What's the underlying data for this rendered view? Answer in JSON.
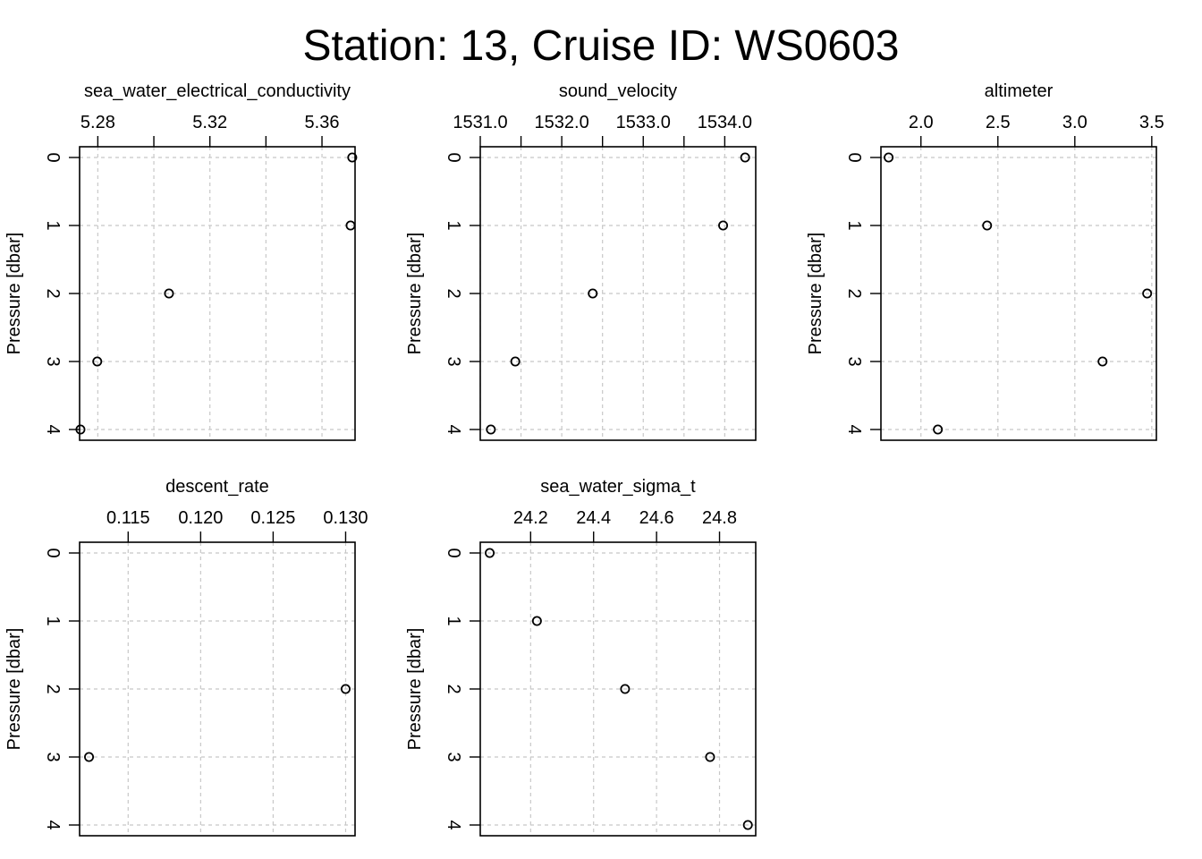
{
  "title": "Station: 13, Cruise ID: WS0603",
  "chart_data": [
    {
      "type": "scatter",
      "title": "sea_water_electrical_conductivity",
      "ylabel": "Pressure [dbar]",
      "y_reversed": true,
      "grid": true,
      "ylim": [
        0,
        4
      ],
      "xlim": [
        5.2735,
        5.3718
      ],
      "xticks": [
        5.28,
        5.3,
        5.32,
        5.34,
        5.36
      ],
      "xtick_labels": [
        "5.28",
        "",
        "5.32",
        "",
        "5.36"
      ],
      "yticks": [
        0,
        1,
        2,
        3,
        4
      ],
      "ytick_labels": [
        "0",
        "1",
        "2",
        "3",
        "4"
      ],
      "x": [
        5.3708,
        5.3702,
        5.3054,
        5.2798,
        5.2738
      ],
      "y": [
        0,
        1,
        2,
        3,
        4
      ]
    },
    {
      "type": "scatter",
      "title": "sound_velocity",
      "ylabel": "Pressure [dbar]",
      "y_reversed": true,
      "grid": true,
      "ylim": [
        0,
        4
      ],
      "xlim": [
        1531.0,
        1534.38
      ],
      "xticks": [
        1531.0,
        1531.5,
        1532.0,
        1532.5,
        1533.0,
        1533.5,
        1534.0
      ],
      "xtick_labels": [
        "1531.0",
        "",
        "1532.0",
        "",
        "1533.0",
        "",
        "1534.0"
      ],
      "yticks": [
        0,
        1,
        2,
        3,
        4
      ],
      "ytick_labels": [
        "0",
        "1",
        "2",
        "3",
        "4"
      ],
      "x": [
        1534.25,
        1533.98,
        1532.38,
        1531.43,
        1531.13
      ],
      "y": [
        0,
        1,
        2,
        3,
        4
      ]
    },
    {
      "type": "scatter",
      "title": "altimeter",
      "ylabel": "Pressure [dbar]",
      "y_reversed": true,
      "grid": true,
      "ylim": [
        0,
        4
      ],
      "xlim": [
        1.74,
        3.53
      ],
      "xticks": [
        2.0,
        2.5,
        3.0,
        3.5
      ],
      "xtick_labels": [
        "2.0",
        "2.5",
        "3.0",
        "3.5"
      ],
      "yticks": [
        0,
        1,
        2,
        3,
        4
      ],
      "ytick_labels": [
        "0",
        "1",
        "2",
        "3",
        "4"
      ],
      "x": [
        1.79,
        2.43,
        3.47,
        3.18,
        2.11
      ],
      "y": [
        0,
        1,
        2,
        3,
        4
      ]
    },
    {
      "type": "scatter",
      "title": "descent_rate",
      "ylabel": "Pressure [dbar]",
      "y_reversed": true,
      "grid": true,
      "ylim": [
        0,
        4
      ],
      "xlim": [
        0.11165,
        0.13065
      ],
      "xticks": [
        0.115,
        0.12,
        0.125,
        0.13
      ],
      "xtick_labels": [
        "0.115",
        "0.120",
        "0.125",
        "0.130"
      ],
      "yticks": [
        0,
        1,
        2,
        3,
        4
      ],
      "ytick_labels": [
        "0",
        "1",
        "2",
        "3",
        "4"
      ],
      "x": [
        0.13,
        0.1123
      ],
      "y": [
        2,
        3
      ]
    },
    {
      "type": "scatter",
      "title": "sea_water_sigma_t",
      "ylabel": "Pressure [dbar]",
      "y_reversed": true,
      "grid": true,
      "ylim": [
        0,
        4
      ],
      "xlim": [
        24.04,
        24.915
      ],
      "xticks": [
        24.2,
        24.4,
        24.6,
        24.8
      ],
      "xtick_labels": [
        "24.2",
        "24.4",
        "24.6",
        "24.8"
      ],
      "yticks": [
        0,
        1,
        2,
        3,
        4
      ],
      "ytick_labels": [
        "0",
        "1",
        "2",
        "3",
        "4"
      ],
      "x": [
        24.07,
        24.22,
        24.5,
        24.77,
        24.89
      ],
      "y": [
        0,
        1,
        2,
        3,
        4
      ]
    }
  ]
}
